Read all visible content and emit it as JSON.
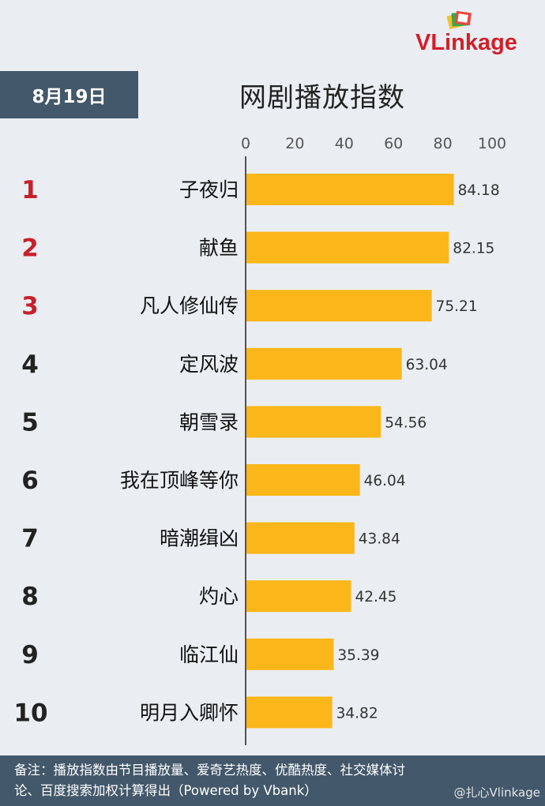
{
  "brand": {
    "name": "VLinkage",
    "accent_color": "#d21f2a",
    "logo_icon": "stacked-cards-icon"
  },
  "date_label": "8月19日",
  "footnote": {
    "line1": "备注：播放指数由节目播放量、爱奇艺热度、优酷热度、社交媒体讨",
    "line2": "论、百度搜索加权计算得出（Powered by Vbank）"
  },
  "watermark": "@扎心Vlinkage",
  "chart_data": {
    "type": "bar",
    "orientation": "horizontal",
    "title": "网剧播放指数",
    "ranks": [
      "1",
      "2",
      "3",
      "4",
      "5",
      "6",
      "7",
      "8",
      "9",
      "10"
    ],
    "categories": [
      "子夜归",
      "献鱼",
      "凡人修仙传",
      "定风波",
      "朝雪录",
      "我在顶峰等你",
      "暗潮缉凶",
      "灼心",
      "临江仙",
      "明月入卿怀"
    ],
    "values": [
      84.18,
      82.15,
      75.21,
      63.04,
      54.56,
      46.04,
      43.84,
      42.45,
      35.39,
      34.82
    ],
    "value_labels": [
      "84.18",
      "82.15",
      "75.21",
      "63.04",
      "54.56",
      "46.04",
      "43.84",
      "42.45",
      "35.39",
      "34.82"
    ],
    "xlim": [
      0,
      100
    ],
    "x_ticks": [
      "0",
      "20",
      "40",
      "60",
      "80",
      "100"
    ],
    "grid": false,
    "colors": {
      "bar": "#fbb619",
      "top3_rank": "#c8202b",
      "rank": "#222222",
      "axis": "#000000"
    }
  }
}
